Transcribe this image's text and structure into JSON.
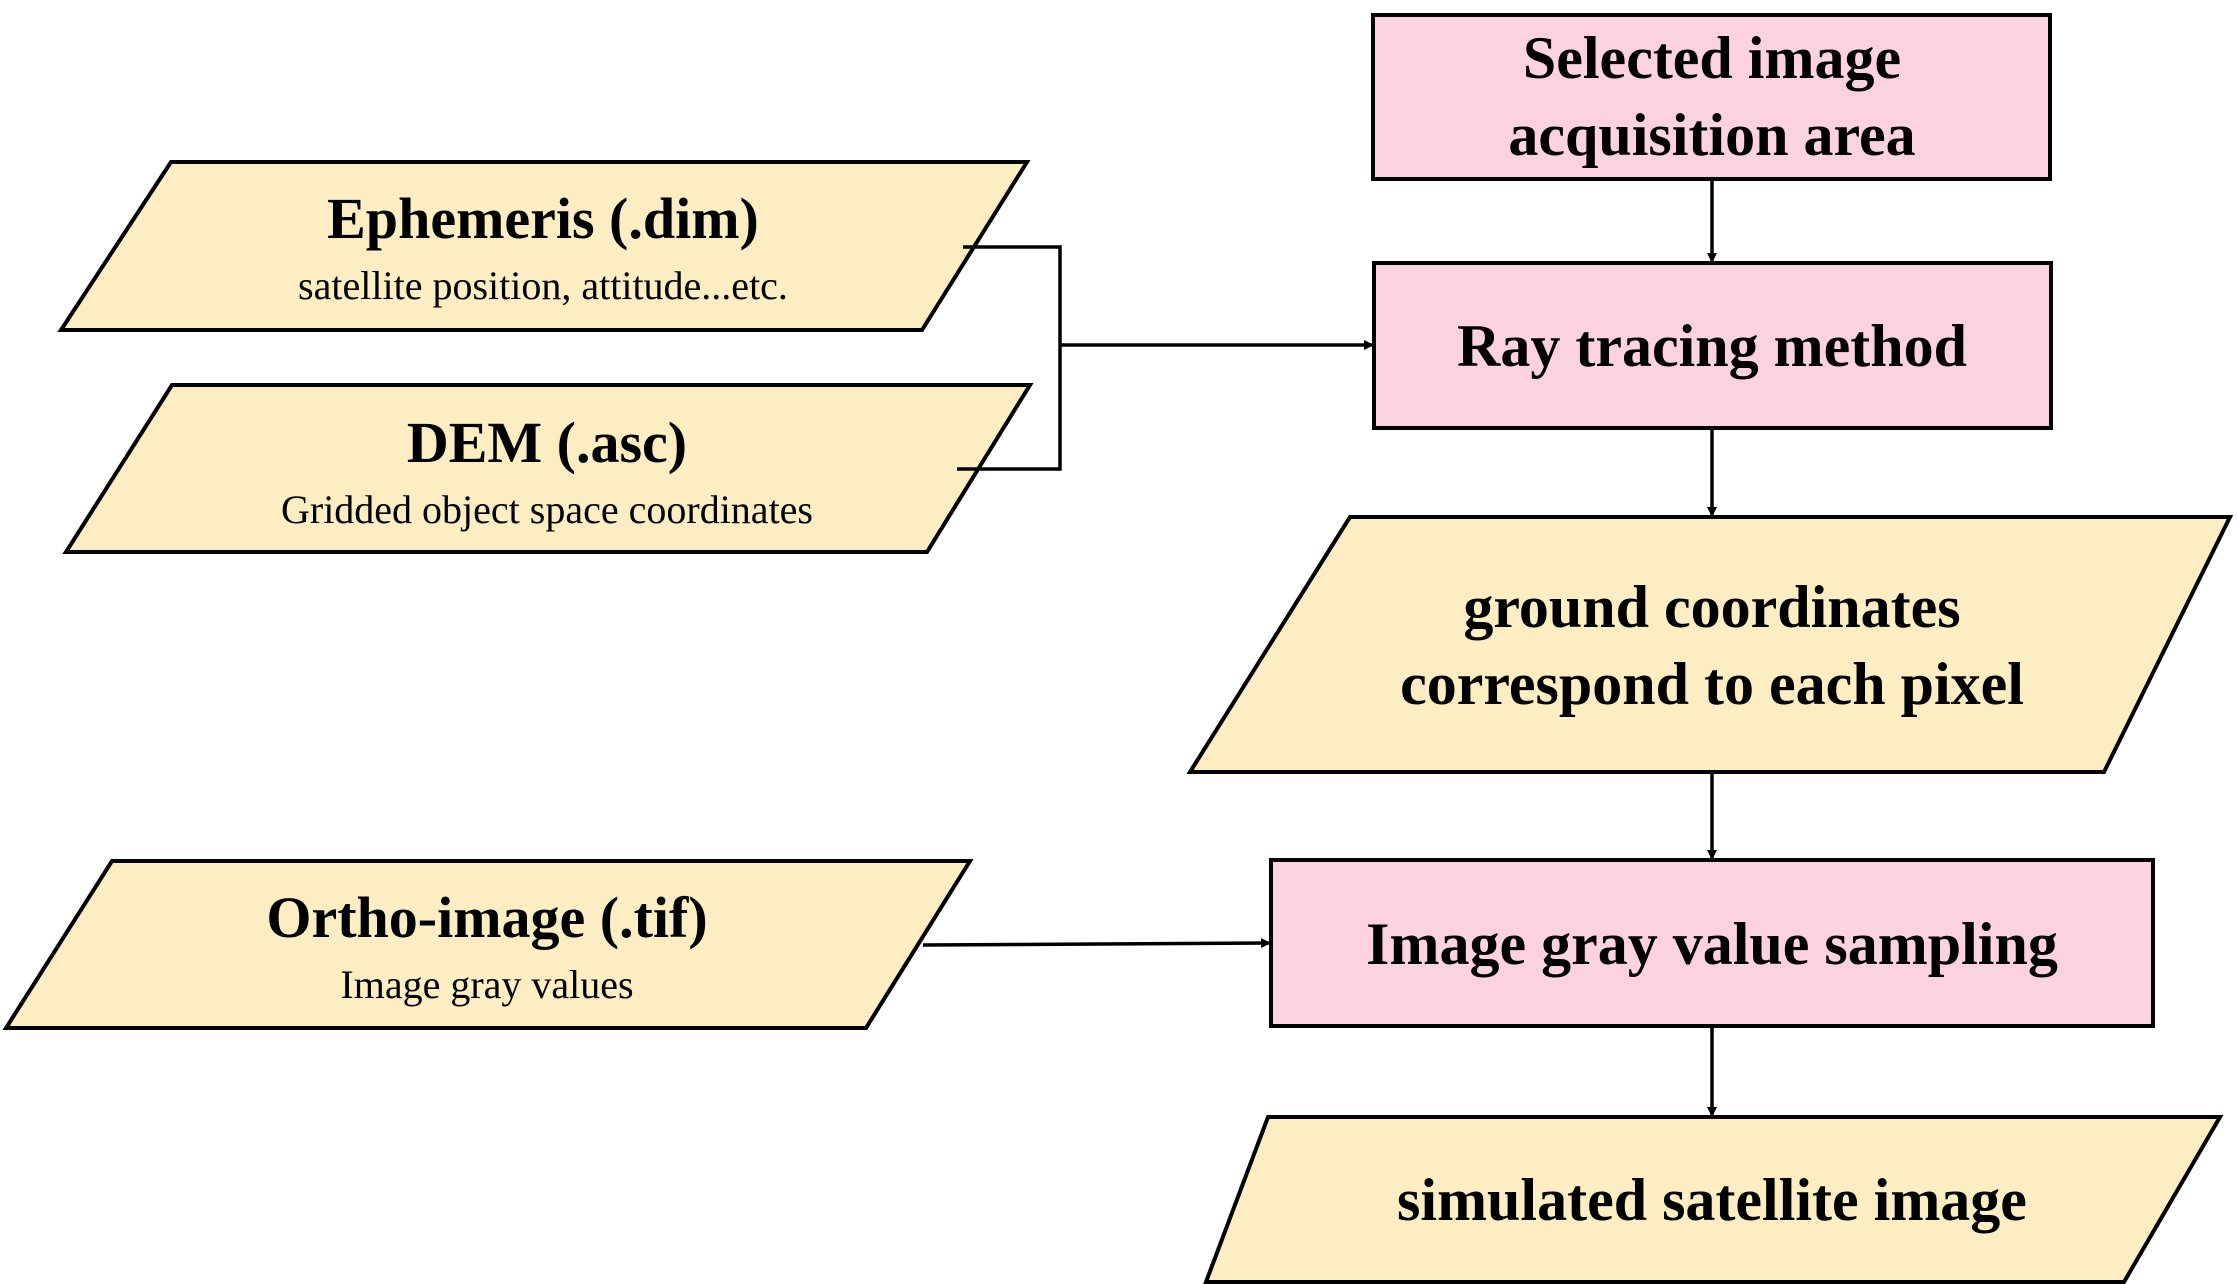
{
  "inputs": {
    "ephemeris": {
      "title": "Ephemeris (.dim)",
      "subtitle": "satellite position, attitude...etc."
    },
    "dem": {
      "title": "DEM (.asc)",
      "subtitle": "Gridded object space coordinates"
    },
    "ortho": {
      "title": "Ortho-image (.tif)",
      "subtitle": "Image gray values"
    }
  },
  "flow": {
    "selected_area": {
      "line1": "Selected image",
      "line2": "acquisition area"
    },
    "ray_tracing": {
      "label": "Ray tracing method"
    },
    "ground_coordinates": {
      "line1": "ground coordinates",
      "line2": "correspond to each pixel"
    },
    "gray_sampling": {
      "label": "Image gray value sampling"
    },
    "simulated_image": {
      "label": "simulated satellite image"
    }
  },
  "colors": {
    "input_fill": "#fcedc3",
    "process_fill": "#fcd2e1",
    "stroke": "#000000"
  }
}
